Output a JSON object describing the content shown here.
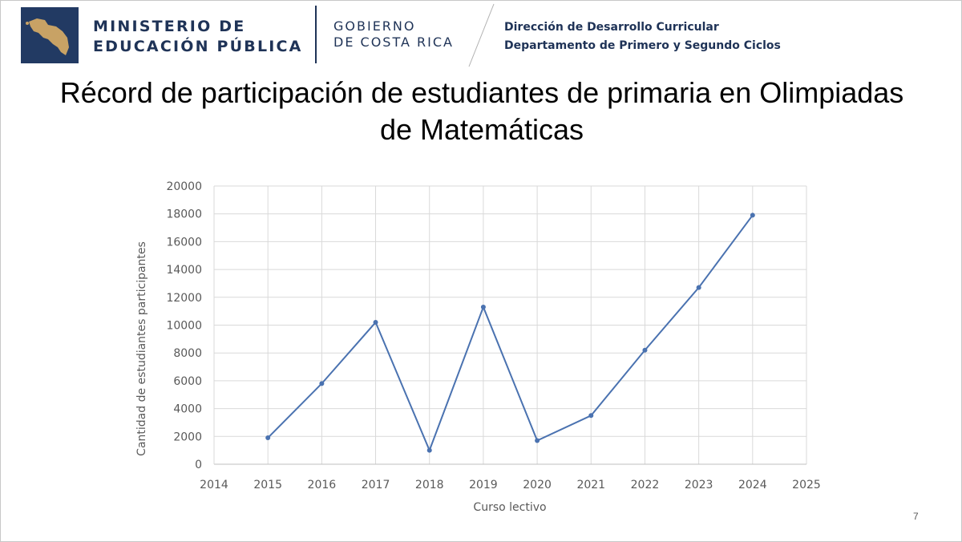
{
  "header": {
    "ministry_line1": "MINISTERIO DE",
    "ministry_line2": "EDUCACIÓN PÚBLICA",
    "gov_line1": "GOBIERNO",
    "gov_line2": "DE COSTA RICA",
    "dept_line1": "Dirección de Desarrollo Curricular",
    "dept_line2": "Departamento de Primero y Segundo Ciclos",
    "brand_color": "#1f3357",
    "logo_bg": "#223a63",
    "logo_fg": "#c8a265"
  },
  "title_line1": "Récord de participación de estudiantes de primaria en Olimpiadas",
  "title_line2": "de Matemáticas",
  "page_number": "7",
  "chart_data": {
    "type": "line",
    "title": "",
    "xlabel": "Curso lectivo",
    "ylabel": "Cantidad de estudiantes  participantes",
    "xlim": [
      2014,
      2025
    ],
    "ylim": [
      0,
      20000
    ],
    "x_ticks": [
      "2014",
      "2015",
      "2016",
      "2017",
      "2018",
      "2019",
      "2020",
      "2021",
      "2022",
      "2023",
      "2024",
      "2025"
    ],
    "y_ticks": [
      "0",
      "2000",
      "4000",
      "6000",
      "8000",
      "10000",
      "12000",
      "14000",
      "16000",
      "18000",
      "20000"
    ],
    "grid": true,
    "legend": "none",
    "series": [
      {
        "color": "#4a72b0",
        "x": [
          2015,
          2016,
          2017,
          2018,
          2019,
          2020,
          2021,
          2022,
          2023,
          2024
        ],
        "y": [
          1900,
          5800,
          10200,
          1000,
          11300,
          1700,
          3500,
          8200,
          12700,
          17900
        ]
      }
    ]
  }
}
